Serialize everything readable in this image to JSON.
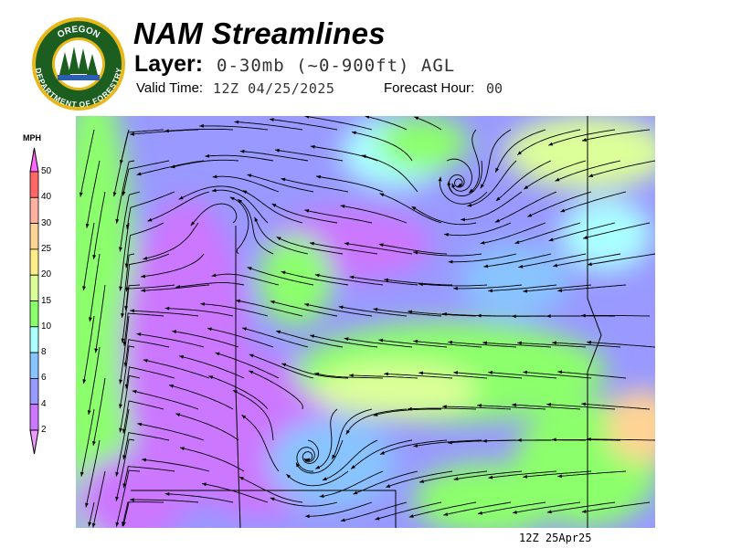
{
  "header": {
    "title": "NAM Streamlines",
    "layer_label": "Layer:",
    "layer_value": "0-30mb (~0-900ft) AGL",
    "valid_label": "Valid Time:",
    "valid_value": "12Z 04/25/2025",
    "forecast_hour_label": "Forecast Hour:",
    "forecast_hour_value": "00"
  },
  "logo": {
    "top_text": "OREGON",
    "bottom_text": "DEPARTMENT OF FORESTRY"
  },
  "legend": {
    "unit": "MPH",
    "bins": [
      {
        "label": "50",
        "color": "#ff66ff"
      },
      {
        "label": "40",
        "color": "#ff6666"
      },
      {
        "label": "30",
        "color": "#ffb0a0"
      },
      {
        "label": "25",
        "color": "#ffd394"
      },
      {
        "label": "20",
        "color": "#ffee88"
      },
      {
        "label": "15",
        "color": "#dcff99"
      },
      {
        "label": "10",
        "color": "#8cff6c"
      },
      {
        "label": "8",
        "color": "#aaffff"
      },
      {
        "label": "6",
        "color": "#88c4ff"
      },
      {
        "label": "4",
        "color": "#9999ff"
      },
      {
        "label": "2",
        "color": "#cc77ff"
      }
    ],
    "below_color": "#ee99ff"
  },
  "footer": {
    "timestamp": "12Z 25Apr25"
  }
}
